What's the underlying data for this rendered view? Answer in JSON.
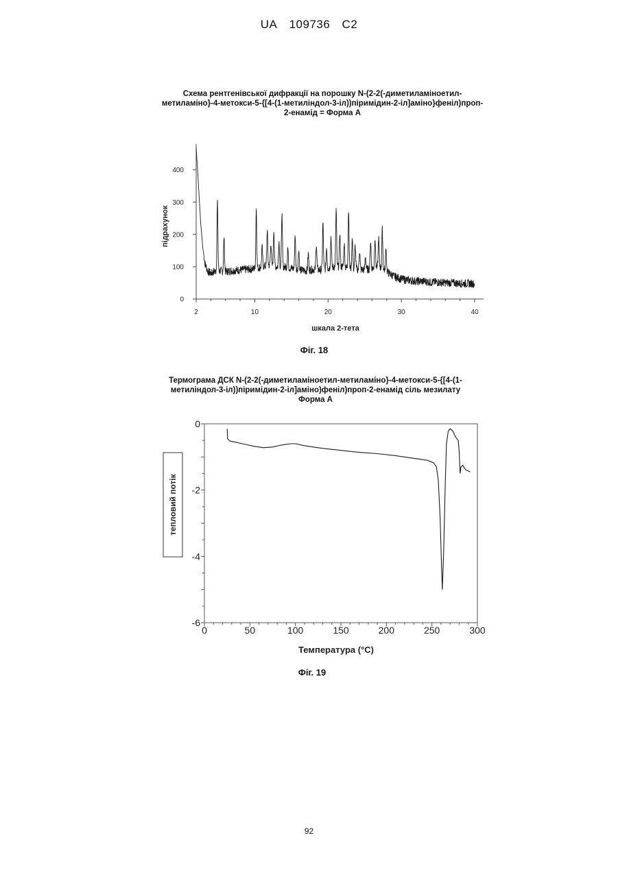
{
  "header": {
    "country": "UA",
    "number": "109736",
    "kind": "C2"
  },
  "page_number": "92",
  "chart_data": [
    {
      "type": "line",
      "title": [
        "Схема рентгенівської дифракції на порошку N-(2-2(-диметиламіноетил-",
        "метиламіно}-4-метокси-5-{[4-(1-метиліндол-3-іл))піримідин-2-іл]аміно}феніл)проп-",
        "2-енамід = Форма А"
      ],
      "xlabel": "шкала 2-тета",
      "ylabel": "підрахунок",
      "xlim": [
        2,
        40
      ],
      "ylim": [
        0,
        480
      ],
      "xticks": [
        "2",
        "10",
        "20",
        "30",
        "40"
      ],
      "yticks": [
        "0",
        "100",
        "200",
        "300",
        "400"
      ],
      "baseline": [
        [
          2,
          470
        ],
        [
          2.3,
          360
        ],
        [
          2.6,
          240
        ],
        [
          2.9,
          160
        ],
        [
          3.2,
          110
        ],
        [
          3.6,
          85
        ],
        [
          4.0,
          80
        ],
        [
          4.5,
          85
        ],
        [
          5,
          88
        ],
        [
          6,
          85
        ],
        [
          7,
          88
        ],
        [
          8,
          90
        ],
        [
          9,
          92
        ],
        [
          10,
          94
        ],
        [
          11,
          100
        ],
        [
          12,
          105
        ],
        [
          13,
          100
        ],
        [
          14,
          100
        ],
        [
          15,
          95
        ],
        [
          16,
          90
        ],
        [
          17,
          88
        ],
        [
          18,
          92
        ],
        [
          19,
          90
        ],
        [
          20,
          95
        ],
        [
          21,
          100
        ],
        [
          22,
          100
        ],
        [
          23,
          95
        ],
        [
          24,
          92
        ],
        [
          25,
          90
        ],
        [
          26,
          95
        ],
        [
          27,
          100
        ],
        [
          28,
          85
        ],
        [
          29,
          70
        ],
        [
          30,
          62
        ],
        [
          31,
          58
        ],
        [
          32,
          55
        ],
        [
          33,
          55
        ],
        [
          34,
          52
        ],
        [
          35,
          52
        ],
        [
          36,
          50
        ],
        [
          37,
          50
        ],
        [
          38,
          48
        ],
        [
          39,
          48
        ],
        [
          40,
          48
        ]
      ],
      "peaks": [
        [
          4.9,
          300
        ],
        [
          5.8,
          190
        ],
        [
          10.2,
          280
        ],
        [
          11.0,
          160
        ],
        [
          11.7,
          215
        ],
        [
          12.2,
          175
        ],
        [
          12.6,
          215
        ],
        [
          13.3,
          180
        ],
        [
          13.7,
          262
        ],
        [
          14.5,
          160
        ],
        [
          15.5,
          200
        ],
        [
          16.0,
          155
        ],
        [
          17.3,
          140
        ],
        [
          18.4,
          172
        ],
        [
          19.3,
          235
        ],
        [
          19.8,
          160
        ],
        [
          20.4,
          195
        ],
        [
          21.1,
          278
        ],
        [
          21.6,
          205
        ],
        [
          22.2,
          175
        ],
        [
          22.8,
          275
        ],
        [
          23.3,
          195
        ],
        [
          23.7,
          165
        ],
        [
          24.3,
          150
        ],
        [
          25.1,
          132
        ],
        [
          25.8,
          180
        ],
        [
          26.4,
          192
        ],
        [
          26.9,
          190
        ],
        [
          27.4,
          215
        ],
        [
          27.9,
          160
        ]
      ]
    },
    {
      "type": "line",
      "title": [
        "Термограма ДСК N-(2-2(-диметиламіноетил-метиламіно}-4-метокси-5-{[4-(1-",
        "метиліндол-3-іл))піримідин-2-іл]аміно)феніл)проп-2-енамід сіль мезилату",
        "Форма А"
      ],
      "xlabel": "Температура (°C)",
      "ylabel": "тепловий потік",
      "xlim": [
        0,
        300
      ],
      "ylim": [
        -6,
        0
      ],
      "xticks": [
        "0",
        "50",
        "100",
        "150",
        "200",
        "250",
        "300"
      ],
      "yticks": [
        "0",
        "-2",
        "-4",
        "-6"
      ],
      "points": [
        [
          25,
          -0.15
        ],
        [
          25.5,
          -0.45
        ],
        [
          28,
          -0.52
        ],
        [
          35,
          -0.56
        ],
        [
          45,
          -0.62
        ],
        [
          55,
          -0.68
        ],
        [
          65,
          -0.72
        ],
        [
          75,
          -0.7
        ],
        [
          85,
          -0.64
        ],
        [
          95,
          -0.6
        ],
        [
          100,
          -0.6
        ],
        [
          110,
          -0.66
        ],
        [
          130,
          -0.74
        ],
        [
          150,
          -0.8
        ],
        [
          170,
          -0.86
        ],
        [
          190,
          -0.9
        ],
        [
          210,
          -0.96
        ],
        [
          230,
          -1.04
        ],
        [
          245,
          -1.1
        ],
        [
          252,
          -1.18
        ],
        [
          255,
          -1.3
        ],
        [
          257,
          -1.7
        ],
        [
          259,
          -2.8
        ],
        [
          260.5,
          -4.2
        ],
        [
          261.5,
          -5.0
        ],
        [
          263,
          -3.8
        ],
        [
          264.5,
          -2.0
        ],
        [
          266,
          -0.6
        ],
        [
          268,
          -0.22
        ],
        [
          270,
          -0.15
        ],
        [
          273,
          -0.22
        ],
        [
          276,
          -0.4
        ],
        [
          279,
          -0.5
        ],
        [
          280,
          -0.85
        ],
        [
          281,
          -1.5
        ],
        [
          282,
          -1.3
        ],
        [
          284,
          -1.25
        ],
        [
          286,
          -1.35
        ],
        [
          288,
          -1.4
        ],
        [
          292,
          -1.45
        ]
      ]
    }
  ],
  "figures": [
    {
      "label": "Фіг. 18"
    },
    {
      "label": "Фіг. 19"
    }
  ]
}
